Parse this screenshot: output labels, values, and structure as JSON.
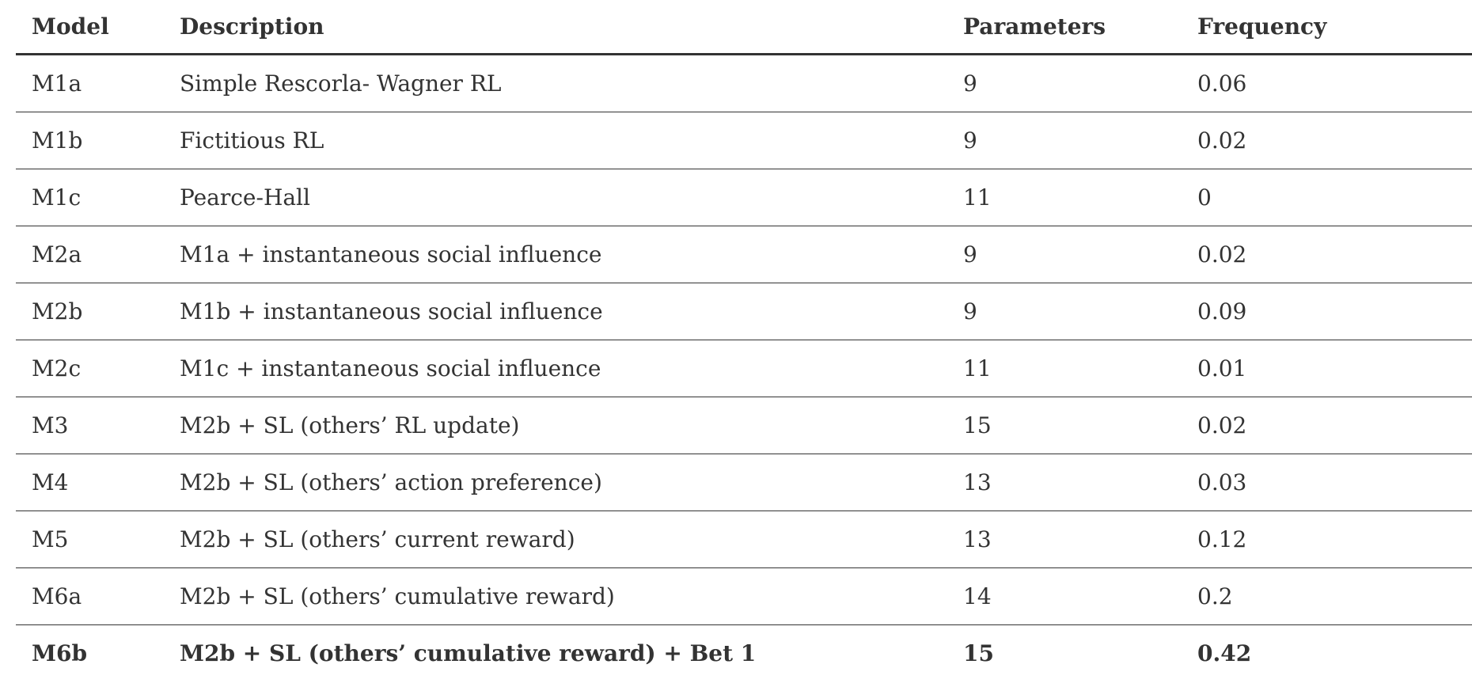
{
  "table": {
    "headers": {
      "model": "Model",
      "description": "Description",
      "parameters": "Parameters",
      "frequency": "Frequency"
    },
    "rows": [
      {
        "model": "M1a",
        "description": "Simple Rescorla- Wagner RL",
        "parameters": "9",
        "frequency": "0.06",
        "bold": false
      },
      {
        "model": "M1b",
        "description": "Fictitious RL",
        "parameters": "9",
        "frequency": "0.02",
        "bold": false
      },
      {
        "model": "M1c",
        "description": "Pearce-Hall",
        "parameters": "11",
        "frequency": "0",
        "bold": false
      },
      {
        "model": "M2a",
        "description": "M1a + instantaneous social influence",
        "parameters": "9",
        "frequency": "0.02",
        "bold": false
      },
      {
        "model": "M2b",
        "description": "M1b + instantaneous social influence",
        "parameters": "9",
        "frequency": "0.09",
        "bold": false
      },
      {
        "model": "M2c",
        "description": "M1c + instantaneous social influence",
        "parameters": "11",
        "frequency": "0.01",
        "bold": false
      },
      {
        "model": "M3",
        "description": "M2b + SL (others’ RL update)",
        "parameters": "15",
        "frequency": "0.02",
        "bold": false
      },
      {
        "model": "M4",
        "description": "M2b + SL (others’ action preference)",
        "parameters": "13",
        "frequency": "0.03",
        "bold": false
      },
      {
        "model": "M5",
        "description": "M2b + SL (others’ current reward)",
        "parameters": "13",
        "frequency": "0.12",
        "bold": false
      },
      {
        "model": "M6a",
        "description": "M2b + SL (others’ cumulative reward)",
        "parameters": "14",
        "frequency": "0.2",
        "bold": false
      },
      {
        "model": "M6b",
        "description": "M2b + SL (others’ cumulative reward) + Bet 1",
        "parameters": "15",
        "frequency": "0.42",
        "bold": true
      }
    ]
  }
}
